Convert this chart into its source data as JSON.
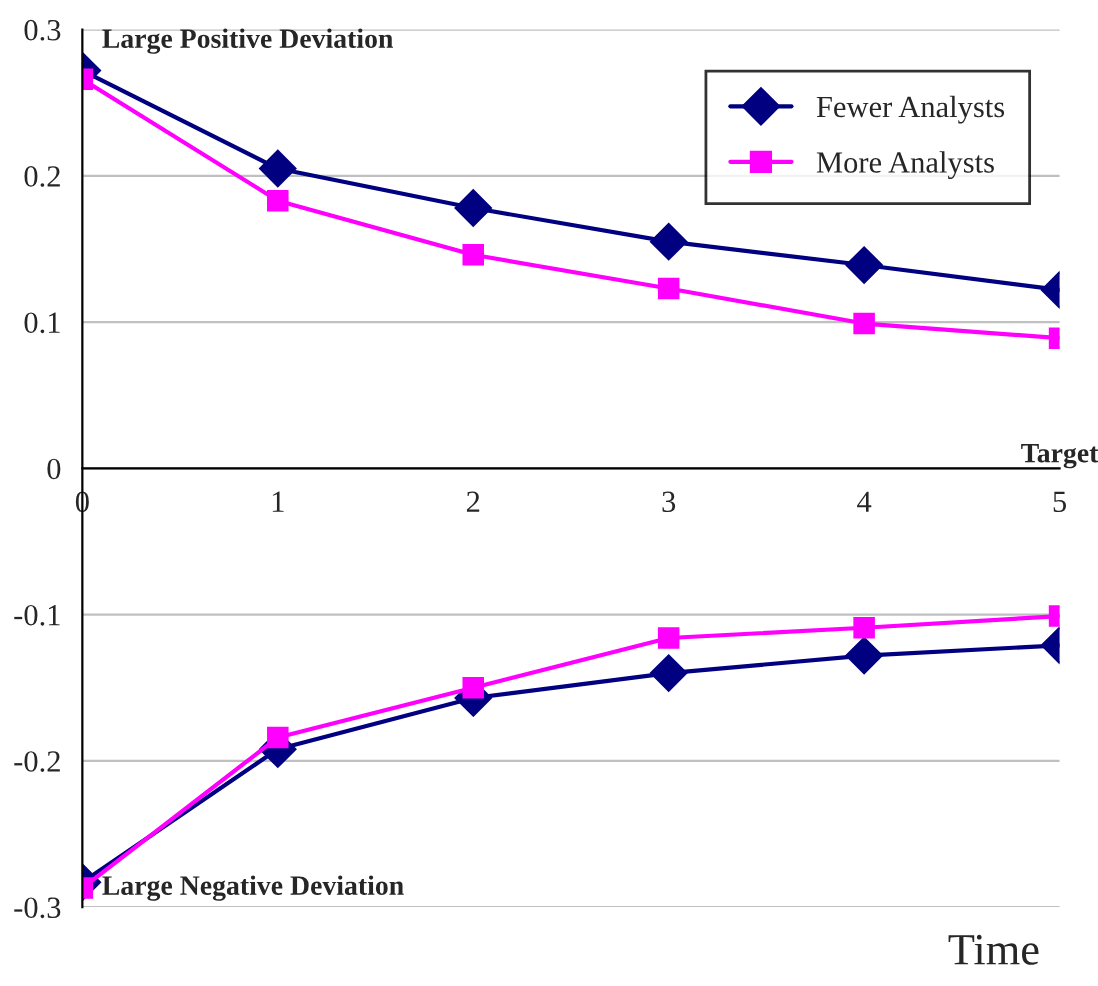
{
  "chart_data": {
    "type": "line",
    "xlabel": "Time",
    "x": [
      0,
      1,
      2,
      3,
      4,
      5
    ],
    "series": [
      {
        "name": "Fewer Analysts",
        "color": "#000080",
        "marker": "diamond",
        "values": [
          0.272,
          0.205,
          0.178,
          0.155,
          0.139,
          0.122
        ]
      },
      {
        "name": "More Analysts",
        "color": "#ff00ff",
        "marker": "square",
        "values": [
          0.266,
          0.183,
          0.146,
          0.123,
          0.099,
          0.089
        ]
      },
      {
        "color": "#000080",
        "marker": "diamond",
        "values": [
          -0.283,
          -0.192,
          -0.157,
          -0.14,
          -0.128,
          -0.121
        ]
      },
      {
        "color": "#ff00ff",
        "marker": "square",
        "values": [
          -0.287,
          -0.184,
          -0.15,
          -0.116,
          -0.109,
          -0.101
        ]
      }
    ],
    "xlim": [
      0,
      5
    ],
    "xticks": [
      0,
      1,
      2,
      3,
      4,
      5
    ],
    "ylim": [
      -0.3,
      0.3
    ],
    "yticks": [
      -0.3,
      -0.2,
      -0.1,
      0,
      0.1,
      0.2,
      0.3
    ],
    "grid": "y",
    "legend": "top right",
    "line_style": "solid",
    "annotations": [
      {
        "text": "Large Positive Deviation",
        "x": 0,
        "y": 0.272
      },
      {
        "text": "Large Negative Deviation",
        "x": 0,
        "y": -0.287
      },
      "Target"
    ]
  }
}
